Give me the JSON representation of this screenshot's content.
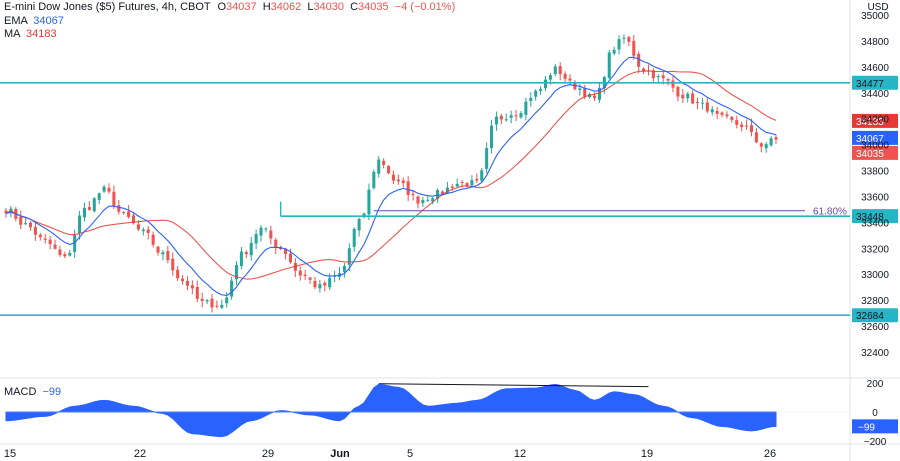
{
  "header": {
    "symbol": "E-mini Dow Jones ($5) Futures, 4h, CBOT",
    "open_label": "O",
    "open": "34037",
    "high_label": "H",
    "high": "34062",
    "low_label": "L",
    "low": "34030",
    "close_label": "C",
    "close": "34035",
    "change": "−4 (−0.01%)",
    "ema_label": "EMA",
    "ema_value": "34067",
    "ma_label": "MA",
    "ma_value": "34183",
    "macd_label": "MACD",
    "macd_value": "−99"
  },
  "colors": {
    "up": "#26a69a",
    "down": "#ef5350",
    "ema": "#2962ff",
    "ma": "#e53935",
    "level": "#26b5c5",
    "macd": "#2962ff",
    "fib": "#5b4ea0"
  },
  "chart_data": {
    "type": "candlestick",
    "currency_label": "USD",
    "y_ticks": [
      32400,
      32600,
      32800,
      33000,
      33200,
      33400,
      33600,
      33800,
      34000,
      34200,
      34400,
      34600,
      34800,
      35000
    ],
    "ylim": [
      32400,
      35000
    ],
    "x_ticks": [
      "15",
      "22",
      "29",
      "Jun",
      "5",
      "12",
      "19",
      "26"
    ],
    "levels": [
      {
        "value": 34477,
        "label": "34477"
      },
      {
        "value": 33448,
        "label": "33448"
      },
      {
        "value": 32684,
        "label": "32684"
      }
    ],
    "fib": {
      "label": "61.80%",
      "value": 33490
    },
    "price_tags": [
      {
        "label": "34183",
        "value": 34183,
        "kind": "ma"
      },
      {
        "label": "34067",
        "value": 34067,
        "kind": "ema"
      },
      {
        "label": "34035",
        "value": 34035,
        "kind": "close"
      }
    ],
    "anchors": [
      {
        "x": 0,
        "price": 33500
      },
      {
        "x": 4,
        "price": 33380
      },
      {
        "x": 8,
        "price": 33250
      },
      {
        "x": 12,
        "price": 33120
      },
      {
        "x": 16,
        "price": 33500
      },
      {
        "x": 20,
        "price": 33650
      },
      {
        "x": 24,
        "price": 33450
      },
      {
        "x": 28,
        "price": 33320
      },
      {
        "x": 32,
        "price": 33150
      },
      {
        "x": 36,
        "price": 32950
      },
      {
        "x": 40,
        "price": 32780
      },
      {
        "x": 44,
        "price": 32760
      },
      {
        "x": 48,
        "price": 33150
      },
      {
        "x": 52,
        "price": 33350
      },
      {
        "x": 56,
        "price": 33200
      },
      {
        "x": 60,
        "price": 33000
      },
      {
        "x": 64,
        "price": 32900
      },
      {
        "x": 68,
        "price": 33000
      },
      {
        "x": 72,
        "price": 33400
      },
      {
        "x": 76,
        "price": 33880
      },
      {
        "x": 80,
        "price": 33700
      },
      {
        "x": 84,
        "price": 33570
      },
      {
        "x": 88,
        "price": 33620
      },
      {
        "x": 92,
        "price": 33700
      },
      {
        "x": 96,
        "price": 33700
      },
      {
        "x": 100,
        "price": 34200
      },
      {
        "x": 104,
        "price": 34250
      },
      {
        "x": 108,
        "price": 34400
      },
      {
        "x": 112,
        "price": 34580
      },
      {
        "x": 116,
        "price": 34450
      },
      {
        "x": 120,
        "price": 34350
      },
      {
        "x": 124,
        "price": 34750
      },
      {
        "x": 126,
        "price": 34820
      },
      {
        "x": 130,
        "price": 34580
      },
      {
        "x": 134,
        "price": 34500
      },
      {
        "x": 138,
        "price": 34380
      },
      {
        "x": 142,
        "price": 34300
      },
      {
        "x": 146,
        "price": 34200
      },
      {
        "x": 150,
        "price": 34150
      },
      {
        "x": 154,
        "price": 34000
      },
      {
        "x": 157,
        "price": 34035
      }
    ],
    "candle_count": 158,
    "macd": {
      "ylim": [
        -200,
        200
      ],
      "y_ticks": [
        200,
        0,
        -200
      ],
      "current": -99,
      "current_label": "−99",
      "anchors": [
        {
          "x": 0,
          "v": -60
        },
        {
          "x": 8,
          "v": -30
        },
        {
          "x": 14,
          "v": 40
        },
        {
          "x": 20,
          "v": 80
        },
        {
          "x": 26,
          "v": 40
        },
        {
          "x": 32,
          "v": -10
        },
        {
          "x": 38,
          "v": -150
        },
        {
          "x": 44,
          "v": -170
        },
        {
          "x": 50,
          "v": -60
        },
        {
          "x": 56,
          "v": 10
        },
        {
          "x": 62,
          "v": -20
        },
        {
          "x": 68,
          "v": -60
        },
        {
          "x": 72,
          "v": 40
        },
        {
          "x": 76,
          "v": 190
        },
        {
          "x": 80,
          "v": 170
        },
        {
          "x": 86,
          "v": 40
        },
        {
          "x": 92,
          "v": 60
        },
        {
          "x": 96,
          "v": 80
        },
        {
          "x": 102,
          "v": 160
        },
        {
          "x": 108,
          "v": 165
        },
        {
          "x": 112,
          "v": 190
        },
        {
          "x": 116,
          "v": 150
        },
        {
          "x": 120,
          "v": 80
        },
        {
          "x": 124,
          "v": 140
        },
        {
          "x": 128,
          "v": 120
        },
        {
          "x": 134,
          "v": 40
        },
        {
          "x": 140,
          "v": -40
        },
        {
          "x": 146,
          "v": -100
        },
        {
          "x": 152,
          "v": -130
        },
        {
          "x": 157,
          "v": -99
        }
      ],
      "divergence_line": {
        "x1": 76,
        "v1": 195,
        "x2": 131,
        "v2": 175
      }
    }
  }
}
